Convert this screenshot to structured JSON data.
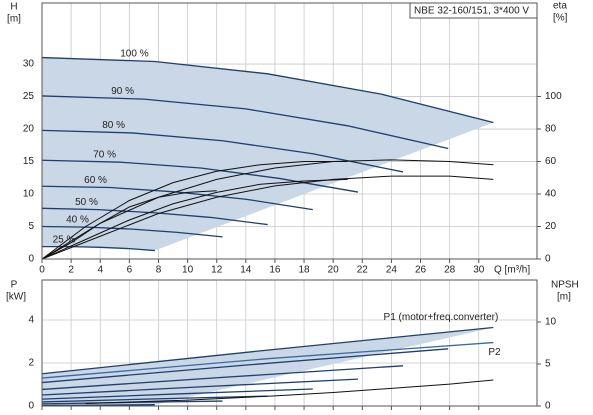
{
  "chart_data": [
    {
      "type": "line",
      "title": "NBE 32-160/151, 3*400 V",
      "y_label": "H",
      "y_unit": "[m]",
      "y2_label": "eta",
      "y2_unit": "[%]",
      "x_label": "Q [m³/h]",
      "xlim": [
        0,
        34
      ],
      "xticks": [
        0,
        2,
        4,
        6,
        8,
        10,
        12,
        14,
        16,
        18,
        20,
        22,
        24,
        26,
        28,
        30
      ],
      "ylim": [
        0,
        39.4
      ],
      "yticks": [
        0,
        5,
        10,
        15,
        20,
        25,
        30
      ],
      "y2lim": [
        0,
        157.5
      ],
      "y2ticks": [
        0,
        20,
        40,
        60,
        80,
        100
      ],
      "grid": true,
      "area_color": "#c9d7e6",
      "series": [
        {
          "name": "100 %",
          "color": "#1f3f6e",
          "x": [
            0,
            7.75,
            15.5,
            23.25,
            31
          ],
          "values": [
            31,
            30.4,
            28.5,
            25.4,
            21.0
          ]
        },
        {
          "name": "90 %",
          "color": "#1f3f6e",
          "x": [
            0,
            7,
            14,
            21,
            27.9
          ],
          "values": [
            25.1,
            24.6,
            23.1,
            20.5,
            17.0
          ]
        },
        {
          "name": "80 %",
          "color": "#1f3f6e",
          "x": [
            0,
            6.2,
            12.4,
            18.6,
            24.8
          ],
          "values": [
            19.8,
            19.4,
            18.2,
            16.2,
            13.4
          ]
        },
        {
          "name": "70 %",
          "color": "#1f3f6e",
          "x": [
            0,
            5.4,
            10.9,
            16.3,
            21.7
          ],
          "values": [
            15.2,
            14.9,
            14.0,
            12.4,
            10.3
          ]
        },
        {
          "name": "60 %",
          "color": "#1f3f6e",
          "x": [
            0,
            4.7,
            9.3,
            14,
            18.6
          ],
          "values": [
            11.2,
            11.0,
            10.3,
            9.2,
            7.6
          ]
        },
        {
          "name": "50 %",
          "color": "#1f3f6e",
          "x": [
            0,
            3.9,
            7.8,
            11.6,
            15.5
          ],
          "values": [
            7.8,
            7.6,
            7.1,
            6.4,
            5.3
          ]
        },
        {
          "name": "40 %",
          "color": "#1f3f6e",
          "x": [
            0,
            3.1,
            6.2,
            9.3,
            12.4
          ],
          "values": [
            5.0,
            4.9,
            4.6,
            4.1,
            3.4
          ]
        },
        {
          "name": "25 %",
          "color": "#1f3f6e",
          "x": [
            0,
            2,
            4,
            6,
            7.75
          ],
          "values": [
            1.9,
            1.9,
            1.8,
            1.6,
            1.3
          ]
        },
        {
          "axis": "y2",
          "color": "#111111",
          "x": [
            0,
            4,
            8,
            12,
            16,
            20,
            24,
            28,
            31
          ],
          "values": [
            0,
            22,
            38,
            49,
            56,
            60,
            61,
            60,
            58
          ]
        },
        {
          "axis": "y2",
          "color": "#111111",
          "x": [
            0,
            3,
            6,
            9,
            12,
            15,
            18,
            21
          ],
          "values": [
            0,
            20,
            36,
            47,
            54,
            58,
            60,
            60
          ]
        },
        {
          "axis": "y2",
          "color": "#111111",
          "x": [
            0,
            4,
            8,
            12,
            16,
            20,
            24,
            28,
            31
          ],
          "values": [
            0,
            14,
            28,
            38,
            45,
            49,
            51,
            51,
            49
          ]
        },
        {
          "axis": "y2",
          "color": "#111111",
          "x": [
            0,
            3,
            6,
            9,
            12,
            15,
            18,
            21
          ],
          "values": [
            0,
            12,
            24,
            34,
            41,
            46,
            48,
            49
          ]
        },
        {
          "axis": "y2",
          "color": "#111111",
          "x": [
            0,
            2,
            4,
            6,
            8,
            10,
            12
          ],
          "values": [
            0,
            10,
            22,
            32,
            38,
            41,
            42
          ]
        }
      ]
    },
    {
      "type": "line",
      "y_label": "P",
      "y_unit": "[kW]",
      "y2_label": "NPSH",
      "y2_unit": "[m]",
      "xlim": [
        0,
        34
      ],
      "ylim": [
        0,
        5.86
      ],
      "yticks": [
        0,
        2,
        4
      ],
      "y2lim": [
        0,
        15
      ],
      "y2ticks": [
        0,
        5,
        10
      ],
      "grid": true,
      "area_color": "#c9d7e6",
      "series": [
        {
          "name": "P1 (motor+freq.converter)",
          "color": "#1f3f6e",
          "x": [
            0,
            15.5,
            31
          ],
          "values": [
            1.5,
            2.6,
            3.65
          ]
        },
        {
          "color": "#1f3f6e",
          "x": [
            0,
            13.95,
            27.9
          ],
          "values": [
            1.09,
            1.9,
            2.66
          ]
        },
        {
          "color": "#1f3f6e",
          "x": [
            0,
            12.4,
            24.8
          ],
          "values": [
            0.77,
            1.33,
            1.87
          ]
        },
        {
          "color": "#1f3f6e",
          "x": [
            0,
            10.85,
            21.7
          ],
          "values": [
            0.51,
            0.89,
            1.25
          ]
        },
        {
          "color": "#1f3f6e",
          "x": [
            0,
            9.3,
            18.6
          ],
          "values": [
            0.32,
            0.56,
            0.79
          ]
        },
        {
          "color": "#1f3f6e",
          "x": [
            0,
            7.75,
            15.5
          ],
          "values": [
            0.19,
            0.33,
            0.46
          ]
        },
        {
          "color": "#1f3f6e",
          "x": [
            0,
            6.2,
            12.4
          ],
          "values": [
            0.1,
            0.17,
            0.23
          ]
        },
        {
          "color": "#1f3f6e",
          "x": [
            0,
            3.9,
            7.75
          ],
          "values": [
            0.02,
            0.04,
            0.06
          ]
        },
        {
          "name": "P2",
          "color": "#3a6aa0",
          "x": [
            0,
            15.5,
            31
          ],
          "values": [
            1.3,
            2.2,
            2.95
          ]
        },
        {
          "axis": "y2",
          "color": "#111111",
          "x": [
            3,
            10,
            16,
            20,
            24,
            28,
            31
          ],
          "values": [
            0.3,
            0.7,
            1.2,
            1.6,
            2.1,
            2.6,
            3.1
          ]
        }
      ]
    }
  ]
}
